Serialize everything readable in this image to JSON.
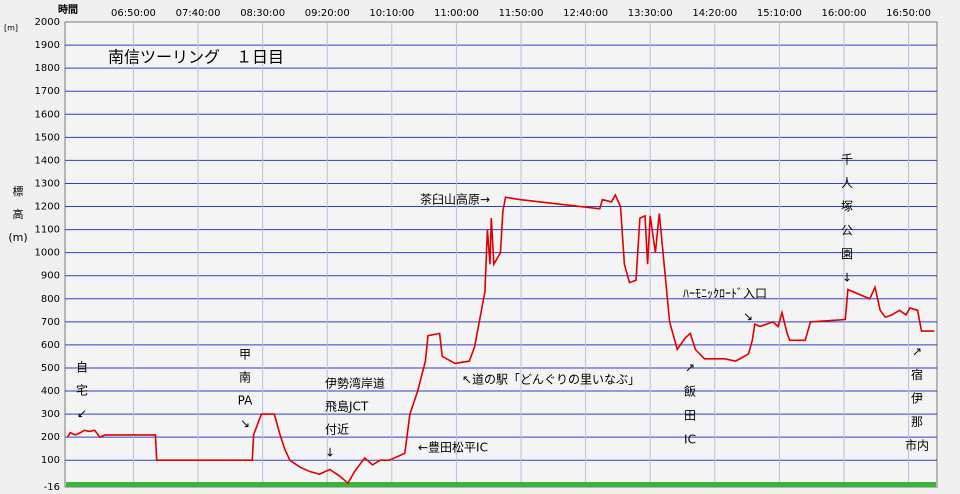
{
  "chart_data": {
    "type": "line",
    "title": "南信ツーリング　１日目",
    "x_label": "時間",
    "y_unit": "[m]",
    "y_label": [
      "標",
      "高",
      "(m)"
    ],
    "xlim": [
      357,
      1032
    ],
    "xticks": [
      {
        "value": 410,
        "label": "06:50:00"
      },
      {
        "value": 460,
        "label": "07:40:00"
      },
      {
        "value": 510,
        "label": "08:30:00"
      },
      {
        "value": 560,
        "label": "09:20:00"
      },
      {
        "value": 610,
        "label": "10:10:00"
      },
      {
        "value": 660,
        "label": "11:00:00"
      },
      {
        "value": 710,
        "label": "11:50:00"
      },
      {
        "value": 760,
        "label": "12:40:00"
      },
      {
        "value": 810,
        "label": "13:30:00"
      },
      {
        "value": 860,
        "label": "14:20:00"
      },
      {
        "value": 910,
        "label": "15:10:00"
      },
      {
        "value": 960,
        "label": "16:00:00"
      },
      {
        "value": 1010,
        "label": "16:50:00"
      }
    ],
    "ylim": [
      -16,
      2000
    ],
    "yticks": [
      -16,
      100,
      200,
      300,
      400,
      500,
      600,
      700,
      800,
      900,
      1000,
      1100,
      1200,
      1300,
      1400,
      1500,
      1600,
      1700,
      1800,
      1900,
      2000
    ],
    "grid": true,
    "color": "#e00000",
    "x": [
      359,
      361,
      365,
      369,
      372,
      376,
      380,
      384,
      388,
      427,
      428,
      502,
      503,
      509,
      519,
      523,
      527,
      531,
      539,
      547,
      554,
      562,
      570,
      576,
      581,
      589,
      595,
      601,
      608,
      620,
      624,
      630,
      636,
      638,
      647,
      649,
      659,
      670,
      674,
      682,
      684,
      686,
      687,
      689,
      694,
      696,
      698,
      709,
      771,
      773,
      780,
      783,
      787,
      790,
      794,
      799,
      802,
      806,
      808,
      810,
      814,
      817,
      825,
      831,
      837,
      841,
      845,
      852,
      868,
      876,
      886,
      889,
      891,
      895,
      905,
      909,
      912,
      916,
      918,
      930,
      934,
      961,
      963,
      980,
      984,
      988,
      992,
      997,
      1003,
      1008,
      1011,
      1017,
      1020,
      1030
    ],
    "values": [
      200,
      220,
      210,
      220,
      230,
      225,
      230,
      200,
      210,
      210,
      100,
      100,
      210,
      300,
      300,
      220,
      150,
      100,
      70,
      50,
      40,
      60,
      30,
      0,
      50,
      110,
      80,
      100,
      100,
      130,
      300,
      400,
      530,
      640,
      650,
      550,
      520,
      530,
      590,
      830,
      1100,
      950,
      1150,
      950,
      1000,
      1180,
      1240,
      1230,
      1190,
      1230,
      1220,
      1250,
      1200,
      950,
      870,
      880,
      1150,
      1160,
      950,
      1160,
      1000,
      1170,
      700,
      580,
      630,
      650,
      580,
      540,
      540,
      530,
      560,
      620,
      690,
      680,
      700,
      680,
      740,
      650,
      620,
      620,
      700,
      710,
      840,
      800,
      850,
      750,
      720,
      730,
      750,
      730,
      760,
      750,
      660,
      660
    ],
    "annotations": [
      [
        "自",
        "宅",
        "↙"
      ],
      [
        "甲",
        "南",
        "PA",
        "↘"
      ],
      [
        "伊勢湾岸道",
        "飛島JCT",
        "付近",
        "↓"
      ],
      [
        "←豊田松平IC"
      ],
      [
        "↖道の駅「どんぐりの里いなぶ」"
      ],
      [
        "茶臼山高原→"
      ],
      [
        "↗",
        "飯",
        "田",
        "IC"
      ],
      [
        "ﾊｰﾓﾆｯｸﾛｰﾄﾞ入口"
      ],
      [
        "↘"
      ],
      [
        "千",
        "人",
        "塚",
        "公",
        "園",
        "↓"
      ],
      [
        "↗",
        "宿",
        "伊",
        "那",
        "市内"
      ]
    ]
  }
}
